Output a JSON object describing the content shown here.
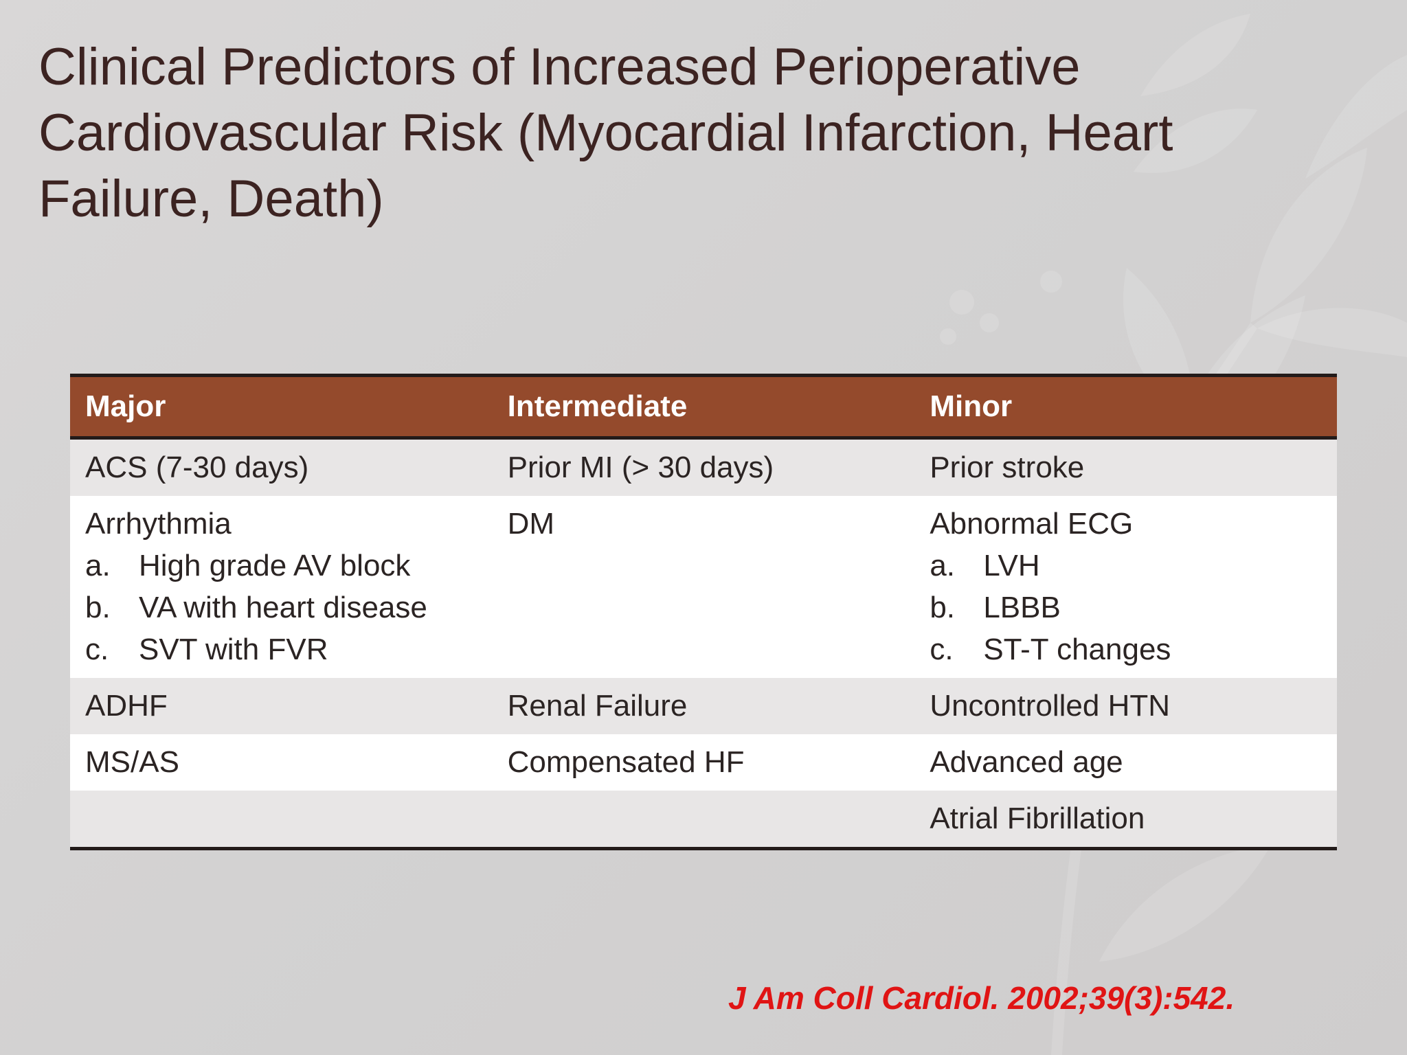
{
  "slide": {
    "title_lines": [
      "Clinical Predictors of Increased Perioperative",
      "Cardiovascular Risk (Myocardial Infarction, Heart",
      "Failure, Death)"
    ],
    "citation": "J Am Coll Cardiol. 2002;39(3):542.",
    "colors": {
      "header_bg": "#944a2c",
      "title_text": "#3c2321",
      "citation_text": "#e01414",
      "row_alt_bg": "#e8e6e6"
    }
  },
  "table": {
    "headers": [
      "Major",
      "Intermediate",
      "Minor"
    ],
    "rows": [
      {
        "major": "ACS (7-30 days)",
        "intermediate": "Prior MI (> 30 days)",
        "minor": "Prior stroke"
      },
      {
        "major": "Arrhythmia",
        "major_sub": [
          {
            "marker": "a.",
            "text": "High grade AV block"
          },
          {
            "marker": "b.",
            "text": "VA with heart disease"
          },
          {
            "marker": "c.",
            "text": "SVT with FVR"
          }
        ],
        "intermediate": "DM",
        "minor": "Abnormal ECG",
        "minor_sub": [
          {
            "marker": "a.",
            "text": "LVH"
          },
          {
            "marker": "b.",
            "text": "LBBB"
          },
          {
            "marker": "c.",
            "text": "ST-T changes"
          }
        ]
      },
      {
        "major": "ADHF",
        "intermediate": "Renal Failure",
        "minor": "Uncontrolled HTN"
      },
      {
        "major": "MS/AS",
        "intermediate": "Compensated HF",
        "minor": "Advanced age"
      },
      {
        "major": "",
        "intermediate": "",
        "minor": "Atrial Fibrillation"
      }
    ]
  }
}
